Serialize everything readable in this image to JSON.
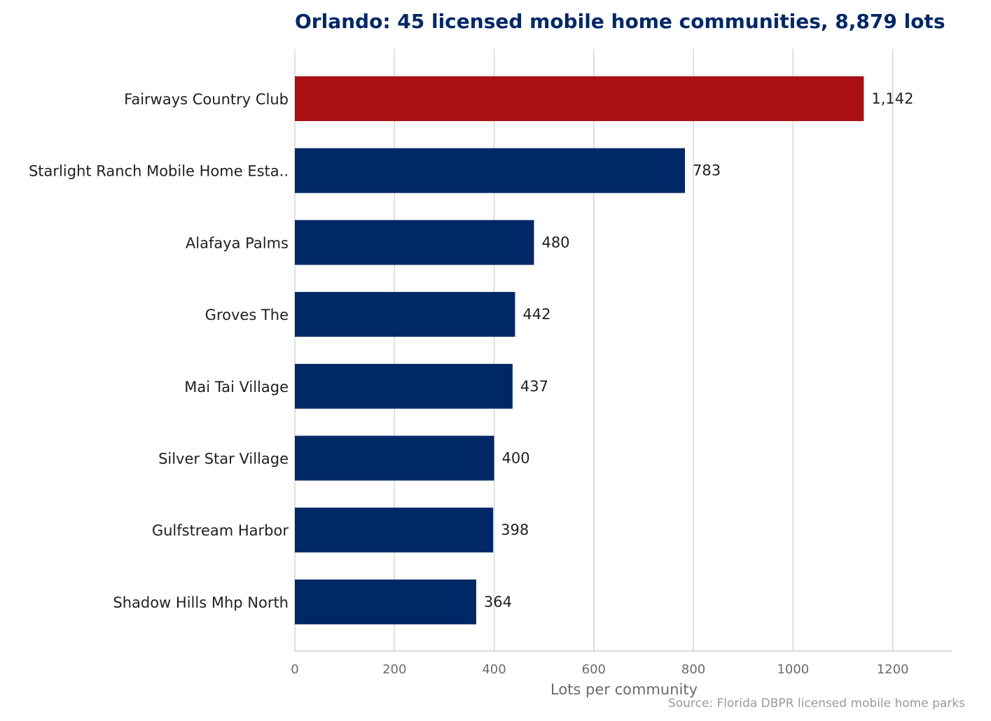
{
  "chart_data": {
    "type": "bar",
    "orientation": "horizontal",
    "title": "Orlando: 45 licensed mobile home communities, 8,879 lots",
    "xlabel": "Lots per community",
    "ylabel": "",
    "xlim": [
      0,
      1320
    ],
    "xticks": [
      0,
      200,
      400,
      600,
      800,
      1000,
      1200
    ],
    "xtick_labels": [
      "0",
      "200",
      "400",
      "600",
      "800",
      "1000",
      "1200"
    ],
    "grid": true,
    "categories": [
      "Fairways Country Club",
      "Starlight Ranch Mobile Home Esta..",
      "Alafaya Palms",
      "Groves The",
      "Mai Tai Village",
      "Silver Star Village",
      "Gulfstream Harbor",
      "Shadow Hills Mhp North"
    ],
    "values": [
      1142,
      783,
      480,
      442,
      437,
      400,
      398,
      364
    ],
    "value_labels": [
      "1,142",
      "783",
      "480",
      "442",
      "437",
      "400",
      "398",
      "364"
    ],
    "highlight_index": 0,
    "colors": {
      "highlight": "#a81015",
      "bar": "#002766",
      "grid": "#d8d8d3",
      "axis": "#cfcfc7",
      "title": "#002766"
    },
    "source": "Source: Florida DBPR licensed mobile home parks"
  }
}
